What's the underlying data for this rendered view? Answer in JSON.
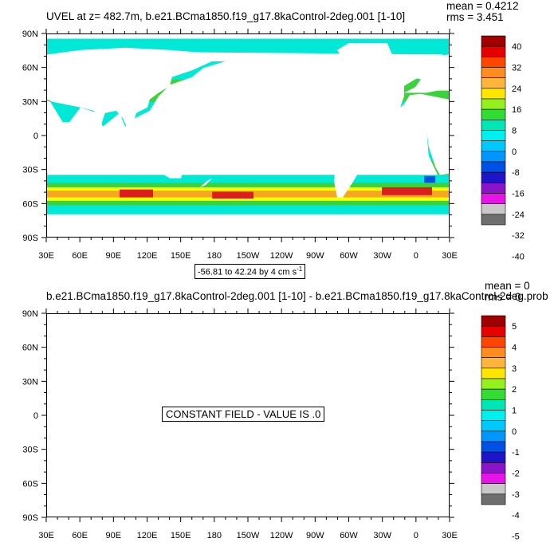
{
  "panel1": {
    "title": "UVEL at z= 482.7m, b.e21.BCma1850.f19_g17.8kaControl-2deg.001 [1-10]",
    "mean": "mean = 0.4212",
    "rms": "rms = 3.451",
    "contour_info": "-56.81 to 42.24 by 4 cm s",
    "contour_unit_exp": "-1"
  },
  "panel2": {
    "title": "b.e21.BCma1850.f19_g17.8kaControl-2deg.001 [1-10] - b.e21.BCma1850.f19_g17.8kaControl-2deg.prob",
    "mean": "mean = 0",
    "rms": "rms = 0",
    "constant_note": "CONSTANT FIELD - VALUE IS .0"
  },
  "colors": {
    "land": "#ffffff",
    "cyan": "#00e8d6",
    "lightcyan": "#00f0ff",
    "green": "#3cd23c",
    "yellow": "#ffff00",
    "orange": "#f5a623",
    "red": "#dc1e1e",
    "darkred": "#b40000",
    "blue": "#0050e6"
  },
  "chart_data": [
    {
      "type": "heatmap",
      "title": "UVEL at z= 482.7m, b.e21.BCma1850.f19_g17.8kaControl-2deg.001 [1-10]",
      "x_ticks": [
        "30E",
        "60E",
        "90E",
        "120E",
        "150E",
        "180",
        "150W",
        "120W",
        "90W",
        "60W",
        "30W",
        "0",
        "30E"
      ],
      "y_ticks": [
        "90N",
        "60N",
        "30N",
        "0",
        "30S",
        "60S",
        "90S"
      ],
      "colorbar": {
        "labels": [
          "40",
          "32",
          "24",
          "16",
          "8",
          "0",
          "-8",
          "-16",
          "-24",
          "-32",
          "-40"
        ],
        "colors": [
          "#a00000",
          "#e60000",
          "#ff4600",
          "#ff8c1e",
          "#ffb43c",
          "#ffe600",
          "#96f01e",
          "#32dc32",
          "#00e6b4",
          "#00f0f0",
          "#00c8ff",
          "#0096ff",
          "#0050e6",
          "#1e14c8",
          "#8c14c8",
          "#e614e6",
          "#c8c8c8",
          "#6e6e6e"
        ]
      },
      "mean": 0.4212,
      "rms": 3.451
    },
    {
      "type": "heatmap",
      "title": "b.e21.BCma1850.f19_g17.8kaControl-2deg.001 [1-10] - b.e21.BCma1850.f19_g17.8kaControl-2deg.prob",
      "x_ticks": [
        "30E",
        "60E",
        "90E",
        "120E",
        "150E",
        "180",
        "150W",
        "120W",
        "90W",
        "60W",
        "30W",
        "0",
        "30E"
      ],
      "y_ticks": [
        "90N",
        "60N",
        "30N",
        "0",
        "30S",
        "60S",
        "90S"
      ],
      "colorbar": {
        "labels": [
          "5",
          "4",
          "3",
          "2",
          "1",
          "0",
          "-1",
          "-2",
          "-3",
          "-4",
          "-5"
        ],
        "colors": [
          "#a00000",
          "#e60000",
          "#ff4600",
          "#ff8c1e",
          "#ffb43c",
          "#ffe600",
          "#96f01e",
          "#32dc32",
          "#00e6b4",
          "#00f0f0",
          "#00c8ff",
          "#0096ff",
          "#0050e6",
          "#1e14c8",
          "#8c14c8",
          "#e614e6",
          "#c8c8c8",
          "#6e6e6e"
        ]
      },
      "mean": 0,
      "rms": 0
    }
  ]
}
